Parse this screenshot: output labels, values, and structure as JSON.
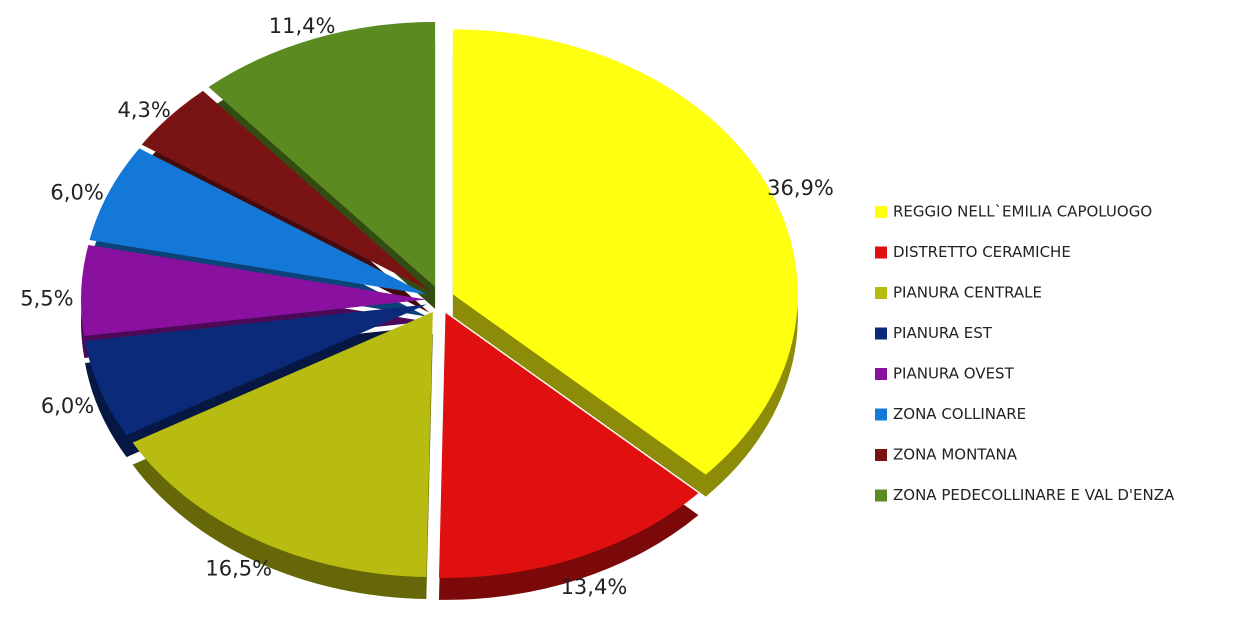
{
  "chart_data": {
    "type": "pie",
    "categories": [
      "REGGIO NELL`EMILIA CAPOLUOGO",
      "DISTRETTO CERAMICHE",
      "PIANURA CENTRALE",
      "PIANURA EST",
      "PIANURA OVEST",
      "ZONA COLLINARE",
      "ZONA MONTANA",
      "ZONA PEDECOLLINARE E VAL D'ENZA"
    ],
    "values": [
      36.9,
      13.4,
      16.5,
      6.0,
      5.5,
      6.0,
      4.3,
      11.4
    ],
    "value_labels": [
      "36,9%",
      "13,4%",
      "16,5%",
      "6,0%",
      "5,5%",
      "6,0%",
      "4,3%",
      "11,4%"
    ],
    "colors": [
      "#ffff10",
      "#e01010",
      "#b8bc10",
      "#0c2a7a",
      "#8a10a0",
      "#1478d8",
      "#7a1414",
      "#5a8a20"
    ]
  }
}
